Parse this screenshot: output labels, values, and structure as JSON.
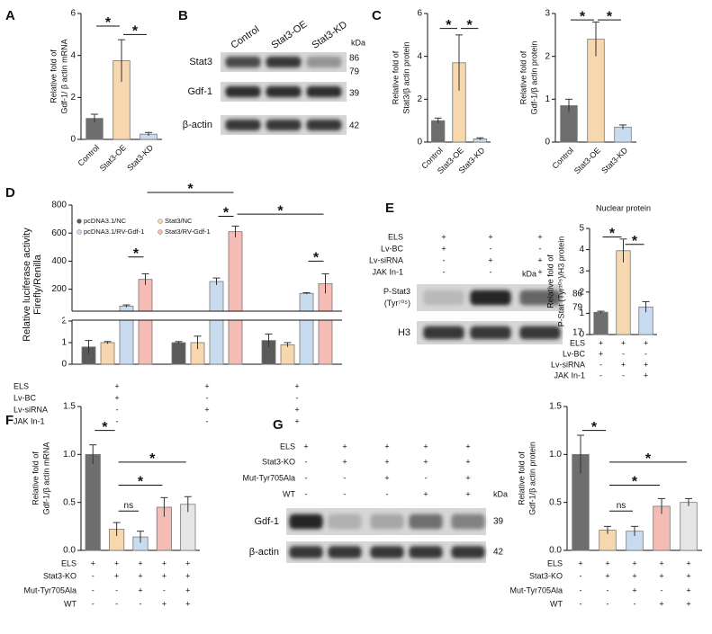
{
  "panel_letters": [
    "A",
    "B",
    "C",
    "D",
    "E",
    "F",
    "G"
  ],
  "chart_data": [
    {
      "type": "bar",
      "ylabel": [
        "Relative fold of",
        "Gdf-1/  β actin mRNA"
      ],
      "categories": [
        "Control",
        "Stat3-OE",
        "Stat3-KD"
      ],
      "values": [
        1.0,
        3.75,
        0.25
      ],
      "errors": [
        0.2,
        1.0,
        0.08
      ],
      "colors": [
        "#6e6e6e",
        "#f7d7ad",
        "#c9dcef"
      ],
      "ylim": [
        0,
        6
      ],
      "yticks": [
        0,
        2,
        4,
        6
      ],
      "annotations": [
        "*",
        "*"
      ]
    },
    {
      "type": "bar",
      "ylabel": [
        "Relative fold of",
        "Stat3/β actin protein"
      ],
      "categories": [
        "Control",
        "Stat3-OE",
        "Stat3-KD"
      ],
      "values": [
        1.0,
        3.7,
        0.15
      ],
      "errors": [
        0.12,
        1.3,
        0.05
      ],
      "colors": [
        "#6e6e6e",
        "#f7d7ad",
        "#c9dcef"
      ],
      "ylim": [
        0,
        6
      ],
      "yticks": [
        0,
        2,
        4,
        6
      ],
      "annotations": [
        "*",
        "*"
      ]
    },
    {
      "type": "bar",
      "ylabel": [
        "Relative fold of",
        "Gdf-1/β actin protein"
      ],
      "categories": [
        "Control",
        "Stat3-OE",
        "Stat3-KD"
      ],
      "values": [
        0.85,
        2.4,
        0.35
      ],
      "errors": [
        0.15,
        0.4,
        0.05
      ],
      "colors": [
        "#6e6e6e",
        "#f7d7ad",
        "#c9dcef"
      ],
      "ylim": [
        0,
        3
      ],
      "yticks": [
        0,
        1,
        2,
        3
      ],
      "annotations": [
        "*",
        "*"
      ]
    },
    {
      "type": "grouped_bar",
      "ylabel": [
        "Relative luciferase activity",
        "Firefly/Renilla"
      ],
      "series": [
        {
          "name": "pcDNA3.1/NC",
          "color": "#5a5a5a",
          "values": [
            0.8,
            1.0,
            1.1
          ],
          "errors": [
            0.3,
            0.05,
            0.3
          ]
        },
        {
          "name": "Stat3/NC",
          "color": "#f7d7ad",
          "values": [
            1.0,
            1.0,
            0.9
          ],
          "errors": [
            0.05,
            0.3,
            0.1
          ]
        },
        {
          "name": "pcDNA3.1/RV-Gdf-1",
          "color": "#c9dcef",
          "values": [
            80,
            255,
            170
          ],
          "errors": [
            8,
            25,
            5
          ]
        },
        {
          "name": "Stat3/RV-Gdf-1",
          "color": "#f5bcb6",
          "values": [
            270,
            610,
            240
          ],
          "errors": [
            40,
            40,
            70
          ]
        }
      ],
      "ylim": [
        0,
        800
      ],
      "ybreak": [
        2,
        50
      ],
      "yticks": [
        0,
        1,
        2,
        200,
        400,
        600,
        800
      ],
      "conditions": [
        {
          "name": "ELS",
          "marks": [
            "+",
            "+",
            "+"
          ]
        },
        {
          "name": "Lv-BC",
          "marks": [
            "+",
            "-",
            "-"
          ]
        },
        {
          "name": "Lv-siRNA",
          "marks": [
            "-",
            "+",
            "+"
          ]
        },
        {
          "name": "JAK In-1",
          "marks": [
            "-",
            "-",
            "+"
          ]
        }
      ],
      "annotations": [
        "*",
        "*",
        "*",
        "*",
        "*"
      ]
    },
    {
      "type": "bar",
      "title": "Nuclear protein",
      "ylabel": [
        "Relative fold of",
        "P-Stat (Tyr⁷⁰⁵)/H3 protein"
      ],
      "values": [
        1.05,
        3.95,
        1.3
      ],
      "errors": [
        0.05,
        0.55,
        0.25
      ],
      "colors": [
        "#6e6e6e",
        "#f7d7ad",
        "#c9dcef"
      ],
      "ylim": [
        0,
        5
      ],
      "yticks": [
        0,
        1,
        2,
        3,
        4,
        5
      ],
      "conditions": [
        {
          "name": "ELS",
          "marks": [
            "+",
            "+",
            "+"
          ]
        },
        {
          "name": "Lv-BC",
          "marks": [
            "+",
            "-",
            "-"
          ]
        },
        {
          "name": "Lv-siRNA",
          "marks": [
            "-",
            "+",
            "+"
          ]
        },
        {
          "name": "JAK In-1",
          "marks": [
            "-",
            "-",
            "+"
          ]
        }
      ],
      "annotations": [
        "*",
        "*"
      ]
    },
    {
      "type": "bar",
      "ylabel": [
        "Relative fold of",
        "Gdf-1/β actin mRNA"
      ],
      "values": [
        1.0,
        0.22,
        0.14,
        0.45,
        0.48
      ],
      "errors": [
        0.1,
        0.07,
        0.06,
        0.1,
        0.08
      ],
      "colors": [
        "#6e6e6e",
        "#f7d7ad",
        "#c9dcef",
        "#f5bcb6",
        "#e6e6e6"
      ],
      "ylim": [
        0,
        1.5
      ],
      "yticks": [
        {
          "value": 0,
          "label": "0.0"
        },
        {
          "value": 0.5,
          "label": "0.5"
        },
        {
          "value": 1,
          "label": "1.0"
        },
        {
          "value": 1.5,
          "label": "1.5"
        }
      ],
      "conditions": [
        {
          "name": "ELS",
          "marks": [
            "+",
            "+",
            "+",
            "+",
            "+"
          ]
        },
        {
          "name": "Stat3-KO",
          "marks": [
            "-",
            "+",
            "+",
            "+",
            "+"
          ]
        },
        {
          "name": "Mut-Tyr705Ala",
          "marks": [
            "-",
            "-",
            "+",
            "-",
            "+"
          ]
        },
        {
          "name": "WT",
          "marks": [
            "-",
            "-",
            "-",
            "+",
            "+"
          ]
        }
      ],
      "annotations": [
        "*",
        "ns",
        "*",
        "*"
      ]
    },
    {
      "type": "bar",
      "ylabel": [
        "Relative fold of",
        "Gdf-1/β actin protein"
      ],
      "values": [
        1.0,
        0.21,
        0.2,
        0.46,
        0.5
      ],
      "errors": [
        0.2,
        0.04,
        0.05,
        0.08,
        0.04
      ],
      "colors": [
        "#6e6e6e",
        "#f7d7ad",
        "#c9dcef",
        "#f5bcb6",
        "#e6e6e6"
      ],
      "ylim": [
        0,
        1.5
      ],
      "yticks": [
        {
          "value": 0,
          "label": "0.0"
        },
        {
          "value": 0.5,
          "label": "0.5"
        },
        {
          "value": 1,
          "label": "1.0"
        },
        {
          "value": 1.5,
          "label": "1.5"
        }
      ],
      "conditions": [
        {
          "name": "ELS",
          "marks": [
            "+",
            "+",
            "+",
            "+",
            "+"
          ]
        },
        {
          "name": "Stat3-KO",
          "marks": [
            "-",
            "+",
            "+",
            "+",
            "+"
          ]
        },
        {
          "name": "Mut-Tyr705Ala",
          "marks": [
            "-",
            "-",
            "+",
            "-",
            "+"
          ]
        },
        {
          "name": "WT",
          "marks": [
            "-",
            "-",
            "-",
            "+",
            "+"
          ]
        }
      ],
      "annotations": [
        "*",
        "ns",
        "*",
        "*"
      ]
    }
  ],
  "blots": [
    {
      "columns": [
        "Control",
        "Stat3-OE",
        "Stat3-KD"
      ],
      "kda_label": "kDa",
      "rows": [
        {
          "name": [
            "Stat3"
          ],
          "kda": [
            "86",
            "79"
          ]
        },
        {
          "name": [
            "Gdf-1"
          ],
          "kda": [
            "39"
          ]
        },
        {
          "name": [
            "β-actin"
          ],
          "kda": [
            "42"
          ]
        }
      ]
    },
    {
      "conditions": [
        {
          "name": "ELS",
          "marks": [
            "+",
            "+",
            "+"
          ]
        },
        {
          "name": "Lv-BC",
          "marks": [
            "+",
            "-",
            "-"
          ]
        },
        {
          "name": "Lv-siRNA",
          "marks": [
            "-",
            "+",
            "+"
          ]
        },
        {
          "name": "JAK In-1",
          "marks": [
            "-",
            "-",
            "+"
          ]
        }
      ],
      "kda_label": "kDa",
      "rows": [
        {
          "name": [
            "P-Stat3",
            "(Tyr⁷⁰⁵)"
          ],
          "kda": [
            "86",
            "79"
          ]
        },
        {
          "name": [
            "H3"
          ],
          "kda": [
            "17"
          ]
        }
      ]
    },
    {
      "conditions": [
        {
          "name": "ELS",
          "marks": [
            "+",
            "+",
            "+",
            "+",
            "+"
          ]
        },
        {
          "name": "Stat3-KO",
          "marks": [
            "-",
            "+",
            "+",
            "+",
            "+"
          ]
        },
        {
          "name": "Mut-Tyr705Ala",
          "marks": [
            "-",
            "-",
            "+",
            "-",
            "+"
          ]
        },
        {
          "name": "WT",
          "marks": [
            "-",
            "-",
            "-",
            "+",
            "+"
          ]
        }
      ],
      "kda_label": "kDa",
      "rows": [
        {
          "name": [
            "Gdf-1"
          ],
          "kda": [
            "39"
          ]
        },
        {
          "name": [
            "β-actin"
          ],
          "kda": [
            "42"
          ]
        }
      ]
    }
  ]
}
